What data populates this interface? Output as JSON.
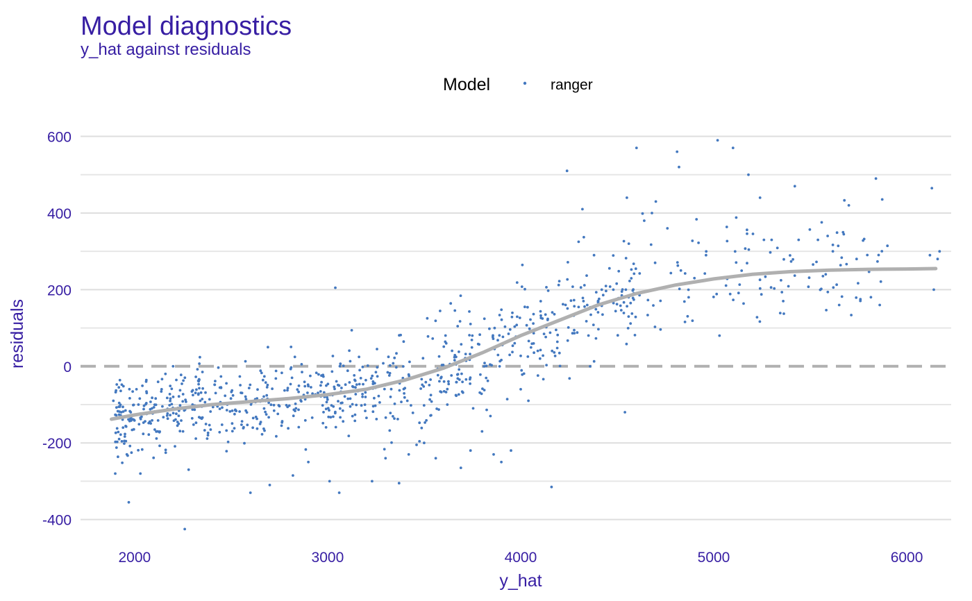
{
  "chart_data": {
    "type": "scatter",
    "title": "Model diagnostics",
    "subtitle": "y_hat against residuals",
    "xlabel": "y_hat",
    "ylabel": "residuals",
    "xlim": [
      1720,
      6230
    ],
    "ylim": [
      -475,
      630
    ],
    "x_ticks": [
      2000,
      3000,
      4000,
      5000,
      6000
    ],
    "y_ticks": [
      -400,
      -200,
      0,
      200,
      400,
      600
    ],
    "y_minor_ticks": [
      -300,
      -100,
      100,
      300,
      500
    ],
    "grid": true,
    "legend": {
      "title": "Model",
      "position": "top",
      "entries": [
        "ranger"
      ]
    },
    "reference_line": {
      "y": 0,
      "style": "dashed",
      "color": "#b0b0b0"
    },
    "colors": {
      "points": "#4378bf",
      "smooth": "#b0b0b0",
      "text": "#371ea3"
    },
    "smooth_curve": {
      "x": [
        1880,
        2000,
        2200,
        2400,
        2600,
        2800,
        3000,
        3200,
        3400,
        3600,
        3800,
        4000,
        4200,
        4400,
        4600,
        4800,
        5000,
        5200,
        5400,
        5600,
        5800,
        6000,
        6150
      ],
      "y": [
        -138,
        -127,
        -112,
        -100,
        -92,
        -84,
        -74,
        -60,
        -36,
        -5,
        35,
        80,
        120,
        160,
        190,
        212,
        228,
        240,
        247,
        251,
        253,
        254,
        255
      ]
    },
    "series": [
      {
        "name": "ranger",
        "x": [
          1890,
          1900,
          1920,
          1940,
          1960,
          1970,
          1980,
          2010,
          2020,
          2030,
          2060,
          2090,
          2120,
          2140,
          2160,
          2200,
          2260,
          2280,
          2300,
          2340,
          2380,
          2420,
          2600,
          2700,
          2820,
          3010,
          3060,
          3230,
          3370,
          2480,
          2900,
          3300,
          3420,
          3500,
          3560,
          3620,
          3690,
          3740,
          3800,
          3860,
          3900,
          3950,
          4000,
          4160,
          4040,
          4100,
          4240,
          4300,
          4320,
          4380,
          4420,
          4480,
          4550,
          4560,
          4600,
          4640,
          4680,
          4700,
          4760,
          4810,
          4820,
          4830,
          4870,
          4900,
          4960,
          5020,
          5030,
          5100,
          5180,
          5240,
          5260,
          5300,
          5360,
          5420,
          5440,
          5540,
          5580,
          5650,
          5670,
          5700,
          5740,
          5760,
          5840,
          5860,
          6130,
          6140,
          6160,
          6170,
          6120,
          4540,
          3040
        ],
        "y": [
          -90,
          -280,
          -190,
          -160,
          -230,
          -355,
          -120,
          -60,
          -100,
          -280,
          -40,
          -110,
          -170,
          -60,
          -20,
          -80,
          -425,
          -270,
          -100,
          -90,
          -180,
          -70,
          -330,
          -310,
          -285,
          -300,
          -330,
          -300,
          -305,
          -100,
          -250,
          -240,
          -230,
          -200,
          -240,
          -100,
          -265,
          -220,
          -170,
          -230,
          -250,
          -220,
          -60,
          -315,
          -90,
          20,
          510,
          325,
          410,
          290,
          200,
          200,
          440,
          320,
          570,
          380,
          400,
          430,
          360,
          560,
          520,
          250,
          180,
          230,
          290,
          590,
          80,
          570,
          500,
          440,
          330,
          330,
          170,
          470,
          330,
          330,
          240,
          160,
          350,
          420,
          280,
          175,
          490,
          160,
          465,
          200,
          280,
          300,
          290,
          -120,
          205
        ]
      }
    ]
  }
}
